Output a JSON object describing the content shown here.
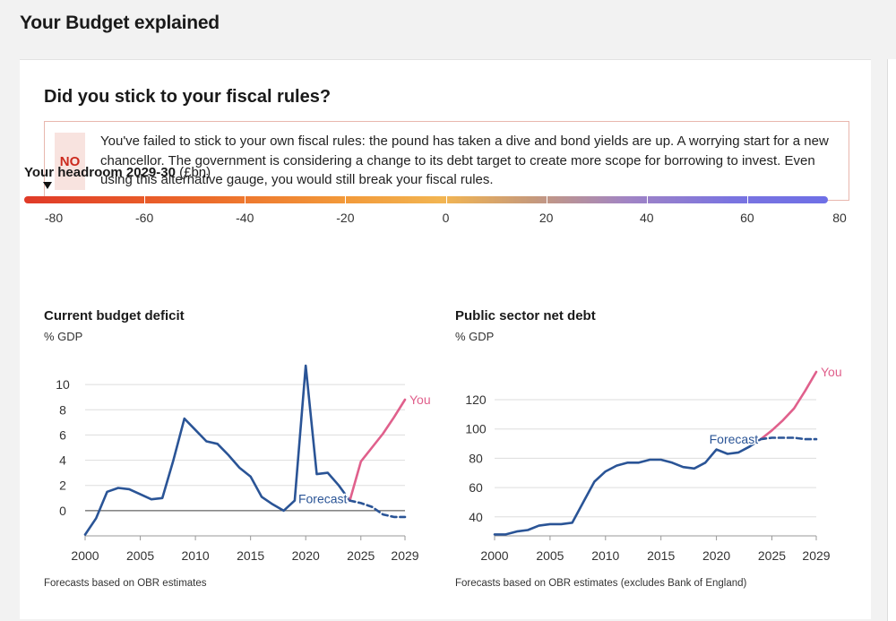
{
  "page_title": "Your Budget explained",
  "card": {
    "title": "Did you stick to your fiscal rules?",
    "verdict_badge": "NO",
    "verdict_text": "You've failed to stick to your own fiscal rules: the pound has taken a dive and bond yields are up. A worrying start for a new chancellor. The government is considering a change to its debt target to create more scope for borrowing to invest. Even using this alternative gauge, you would still break your fiscal rules."
  },
  "headroom": {
    "label_bold": "Your headroom 2029-30",
    "label_unit": "(£bn)",
    "value": -80,
    "ticks": [
      "-80",
      "-60",
      "-40",
      "-20",
      "0",
      "20",
      "40",
      "60",
      "80"
    ]
  },
  "colors": {
    "historic": "#2a5496",
    "you": "#e0608c",
    "forecast": "#2a5496",
    "scale_negative": "#e03a28",
    "scale_positive": "#6e6fe6"
  },
  "chart_data": [
    {
      "type": "line",
      "title": "Current budget deficit",
      "ylabel": "% GDP",
      "note": "Forecasts based on OBR estimates",
      "xlim": [
        2000,
        2029
      ],
      "ylim": [
        -2,
        12
      ],
      "xticks": [
        "2000",
        "2005",
        "2010",
        "2015",
        "2020",
        "2025",
        "2029"
      ],
      "yticks": [
        "0",
        "2",
        "4",
        "6",
        "8",
        "10"
      ],
      "zero_line": 0,
      "series": [
        {
          "role": "historic",
          "style": "solid",
          "x": [
            2000,
            2001,
            2002,
            2003,
            2004,
            2005,
            2006,
            2007,
            2008,
            2009,
            2010,
            2011,
            2012,
            2013,
            2014,
            2015,
            2016,
            2017,
            2018,
            2019,
            2020,
            2021,
            2022,
            2023,
            2024
          ],
          "y": [
            -1.9,
            -0.6,
            1.5,
            1.8,
            1.7,
            1.3,
            0.9,
            1.0,
            4.0,
            7.3,
            6.4,
            5.5,
            5.3,
            4.4,
            3.4,
            2.7,
            1.1,
            0.5,
            0.0,
            0.8,
            11.5,
            2.9,
            3.0,
            2.0,
            0.8
          ]
        },
        {
          "name": "You",
          "role": "you",
          "style": "solid",
          "x": [
            2024,
            2025,
            2026,
            2027,
            2028,
            2029
          ],
          "y": [
            0.8,
            3.9,
            5.0,
            6.1,
            7.4,
            8.8
          ]
        },
        {
          "name": "Forecast",
          "role": "forecast",
          "style": "dashed",
          "x": [
            2024,
            2025,
            2026,
            2027,
            2028,
            2029
          ],
          "y": [
            0.8,
            0.6,
            0.3,
            -0.3,
            -0.5,
            -0.5
          ]
        }
      ]
    },
    {
      "type": "line",
      "title": "Public sector net debt",
      "ylabel": "% GDP",
      "note": "Forecasts based on OBR estimates (excludes Bank of England)",
      "xlim": [
        2000,
        2029
      ],
      "ylim": [
        27,
        150
      ],
      "xticks": [
        "2000",
        "2005",
        "2010",
        "2015",
        "2020",
        "2025",
        "2029"
      ],
      "yticks": [
        "40",
        "60",
        "80",
        "100",
        "120"
      ],
      "series": [
        {
          "role": "historic",
          "style": "solid",
          "x": [
            2000,
            2001,
            2002,
            2003,
            2004,
            2005,
            2006,
            2007,
            2008,
            2009,
            2010,
            2011,
            2012,
            2013,
            2014,
            2015,
            2016,
            2017,
            2018,
            2019,
            2020,
            2021,
            2022,
            2023,
            2024
          ],
          "y": [
            28,
            28,
            30,
            31,
            34,
            35,
            35,
            36,
            50,
            64,
            71,
            75,
            77,
            77,
            79,
            79,
            77,
            74,
            73,
            77,
            86,
            83,
            84,
            88,
            93
          ]
        },
        {
          "name": "You",
          "role": "you",
          "style": "solid",
          "x": [
            2024,
            2025,
            2026,
            2027,
            2028,
            2029
          ],
          "y": [
            93,
            99,
            106,
            114,
            126,
            139
          ]
        },
        {
          "name": "Forecast",
          "role": "forecast",
          "style": "dashed",
          "x": [
            2024,
            2025,
            2026,
            2027,
            2028,
            2029
          ],
          "y": [
            93,
            94,
            94,
            94,
            93,
            93
          ]
        }
      ]
    }
  ]
}
